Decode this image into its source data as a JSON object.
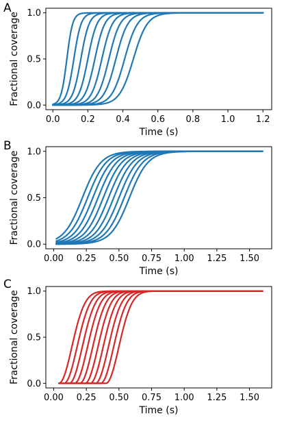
{
  "chart_data": [
    {
      "panel_label": "A",
      "type": "line",
      "xlabel": "Time (s)",
      "ylabel": "Fractional coverage",
      "xlim": [
        -0.04,
        1.25
      ],
      "ylim": [
        -0.05,
        1.05
      ],
      "xticks": [
        0.0,
        0.2,
        0.4,
        0.6,
        0.8,
        1.0,
        1.2
      ],
      "xtick_labels": [
        "0.0",
        "0.2",
        "0.4",
        "0.6",
        "0.8",
        "1.0",
        "1.2"
      ],
      "yticks": [
        0.0,
        0.5,
        1.0
      ],
      "ytick_labels": [
        "0.0",
        "0.5",
        "1.0"
      ],
      "grid": false,
      "color": "#1f77b4",
      "x_start": 0.0,
      "x_end": 1.2,
      "series": [
        {
          "midpoint": 0.08,
          "steepness": 60
        },
        {
          "midpoint": 0.12,
          "steepness": 48
        },
        {
          "midpoint": 0.16,
          "steepness": 42
        },
        {
          "midpoint": 0.2,
          "steepness": 38
        },
        {
          "midpoint": 0.24,
          "steepness": 35
        },
        {
          "midpoint": 0.28,
          "steepness": 33
        },
        {
          "midpoint": 0.32,
          "steepness": 31
        },
        {
          "midpoint": 0.36,
          "steepness": 29
        },
        {
          "midpoint": 0.41,
          "steepness": 27
        },
        {
          "midpoint": 0.46,
          "steepness": 25
        }
      ]
    },
    {
      "panel_label": "B",
      "type": "line",
      "xlabel": "Time (s)",
      "ylabel": "Fractional coverage",
      "xlim": [
        -0.06,
        1.67
      ],
      "ylim": [
        -0.05,
        1.05
      ],
      "xticks": [
        0.0,
        0.25,
        0.5,
        0.75,
        1.0,
        1.25,
        1.5
      ],
      "xtick_labels": [
        "0.00",
        "0.25",
        "0.50",
        "0.75",
        "1.00",
        "1.25",
        "1.50"
      ],
      "yticks": [
        0.0,
        0.5,
        1.0
      ],
      "ytick_labels": [
        "0.0",
        "0.5",
        "1.0"
      ],
      "grid": false,
      "color": "#1f77b4",
      "x_start": 0.02,
      "x_end": 1.6,
      "series": [
        {
          "midpoint": 0.22,
          "steepness": 14
        },
        {
          "midpoint": 0.26,
          "steepness": 14
        },
        {
          "midpoint": 0.3,
          "steepness": 14
        },
        {
          "midpoint": 0.34,
          "steepness": 14
        },
        {
          "midpoint": 0.38,
          "steepness": 14
        },
        {
          "midpoint": 0.42,
          "steepness": 14
        },
        {
          "midpoint": 0.46,
          "steepness": 14
        },
        {
          "midpoint": 0.5,
          "steepness": 14
        },
        {
          "midpoint": 0.54,
          "steepness": 14
        },
        {
          "midpoint": 0.58,
          "steepness": 14
        }
      ]
    },
    {
      "panel_label": "C",
      "type": "line",
      "xlabel": "Time (s)",
      "ylabel": "Fractional coverage",
      "xlim": [
        -0.06,
        1.67
      ],
      "ylim": [
        -0.05,
        1.05
      ],
      "xticks": [
        0.0,
        0.25,
        0.5,
        0.75,
        1.0,
        1.25,
        1.5
      ],
      "xtick_labels": [
        "0.00",
        "0.25",
        "0.50",
        "0.75",
        "1.00",
        "1.25",
        "1.50"
      ],
      "yticks": [
        0.0,
        0.5,
        1.0
      ],
      "ytick_labels": [
        "0.0",
        "0.5",
        "1.0"
      ],
      "grid": false,
      "color": "#d62728",
      "x_start": 0.04,
      "x_end": 1.6,
      "series": [
        {
          "onset": 0.04,
          "tau": 0.14
        },
        {
          "onset": 0.08,
          "tau": 0.14
        },
        {
          "onset": 0.12,
          "tau": 0.14
        },
        {
          "onset": 0.16,
          "tau": 0.14
        },
        {
          "onset": 0.2,
          "tau": 0.14
        },
        {
          "onset": 0.24,
          "tau": 0.14
        },
        {
          "onset": 0.28,
          "tau": 0.14
        },
        {
          "onset": 0.32,
          "tau": 0.14
        },
        {
          "onset": 0.36,
          "tau": 0.14
        },
        {
          "onset": 0.4,
          "tau": 0.14
        }
      ]
    }
  ]
}
